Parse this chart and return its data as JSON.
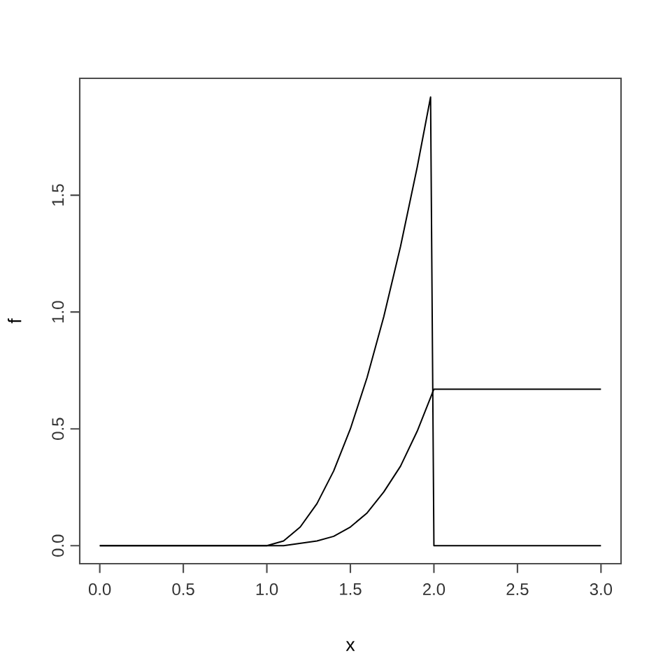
{
  "chart_data": {
    "type": "line",
    "xlabel": "x",
    "ylabel": "f",
    "xlim": [
      -0.12,
      3.12
    ],
    "ylim": [
      -0.077,
      2.0
    ],
    "xticks": [
      {
        "value": 0,
        "label": "0.0"
      },
      {
        "value": 0.5,
        "label": "0.5"
      },
      {
        "value": 1,
        "label": "1.0"
      },
      {
        "value": 1.5,
        "label": "1.5"
      },
      {
        "value": 2,
        "label": "2.0"
      },
      {
        "value": 2.5,
        "label": "2.5"
      },
      {
        "value": 3,
        "label": "3.0"
      }
    ],
    "yticks": [
      {
        "value": 0,
        "label": "0.0"
      },
      {
        "value": 0.5,
        "label": "0.5"
      },
      {
        "value": 1,
        "label": "1.0"
      },
      {
        "value": 1.5,
        "label": "1.5"
      }
    ],
    "grid": false,
    "marker": "none",
    "line_style": "solid",
    "series": [
      {
        "color": "#000000",
        "x": [
          0,
          1,
          1.1,
          1.2,
          1.3,
          1.4,
          1.5,
          1.6,
          1.7,
          1.8,
          1.9,
          1.98,
          2.0,
          3.0
        ],
        "values": [
          0,
          0,
          0.02,
          0.08,
          0.18,
          0.32,
          0.5,
          0.72,
          0.98,
          1.28,
          1.62,
          1.92,
          0,
          0
        ]
      },
      {
        "color": "#000000",
        "x": [
          0,
          1,
          1.1,
          1.2,
          1.3,
          1.4,
          1.5,
          1.6,
          1.7,
          1.8,
          1.9,
          2.0,
          3.0
        ],
        "values": [
          0,
          0,
          0.0,
          0.01,
          0.02,
          0.04,
          0.08,
          0.14,
          0.23,
          0.34,
          0.49,
          0.67,
          0.67
        ]
      }
    ]
  }
}
